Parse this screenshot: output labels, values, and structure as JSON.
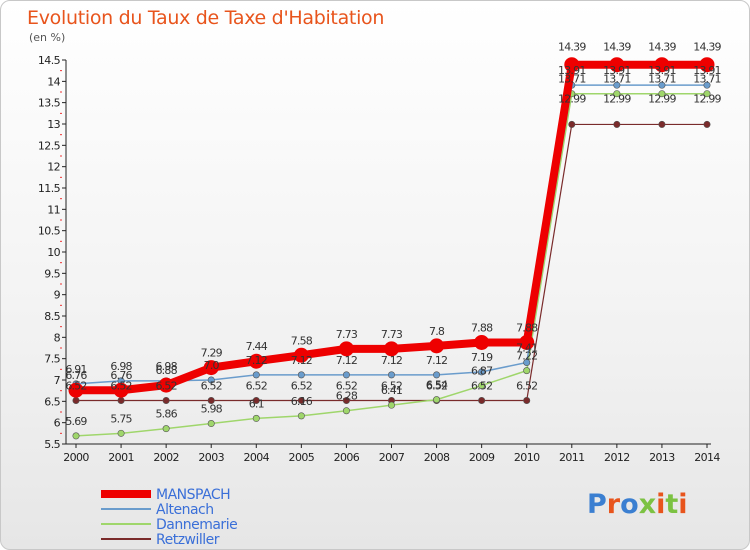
{
  "title": "Evolution du Taux de Taxe d'Habitation",
  "unit": "(en %)",
  "logo": [
    "P",
    "r",
    "o",
    "x",
    "i",
    "t",
    "i"
  ],
  "logo_colors": [
    "#3b7fd1",
    "#e8541c",
    "#3b7fd1",
    "#7cc242",
    "#e8541c",
    "#7cc242",
    "#e8541c"
  ],
  "chart_data": {
    "type": "line",
    "x": [
      2000,
      2001,
      2002,
      2003,
      2004,
      2005,
      2006,
      2007,
      2008,
      2009,
      2010,
      2011,
      2012,
      2013,
      2014
    ],
    "ylim": [
      5.5,
      14.5
    ],
    "yticks": [
      5.5,
      6,
      6.5,
      7,
      7.5,
      8,
      8.5,
      9,
      9.5,
      10,
      10.5,
      11,
      11.5,
      12,
      12.5,
      13,
      13.5,
      14,
      14.5
    ],
    "ytick_labels": [
      "5.5",
      "6",
      "6.5",
      "7",
      "7.5",
      "8",
      "8.5",
      "9",
      "9.5",
      "10",
      "10.5",
      "11",
      "11.5",
      "12",
      "12.5",
      "13",
      "13.5",
      "14",
      "14.5"
    ],
    "grid": false,
    "legend_position": "bottom-left",
    "series": [
      {
        "name": "MANSPACH",
        "color": "#ee0000",
        "values": [
          6.76,
          6.76,
          6.88,
          7.29,
          7.44,
          7.58,
          7.73,
          7.73,
          7.8,
          7.88,
          7.88,
          14.39,
          14.39,
          14.39,
          14.39
        ],
        "labels": [
          "6.76",
          "6.76",
          "6.88",
          "7.29",
          "7.44",
          "7.58",
          "7.73",
          "7.73",
          "7.8",
          "7.88",
          "7.88",
          "14.39",
          "14.39",
          "14.39",
          "14.39"
        ]
      },
      {
        "name": "Altenach",
        "color": "#6a9ccc",
        "values": [
          6.91,
          6.98,
          6.98,
          7.0,
          7.12,
          7.12,
          7.12,
          7.12,
          7.12,
          7.19,
          7.41,
          13.91,
          13.91,
          13.91,
          13.91
        ],
        "labels": [
          "6.91",
          "6.98",
          "6.98",
          "7.0",
          "7.12",
          "7.12",
          "7.12",
          "7.12",
          "7.12",
          "7.19",
          "7.41",
          "13.91",
          "13.91",
          "13.91",
          "13.91"
        ]
      },
      {
        "name": "Dannemarie",
        "color": "#9fd66b",
        "values": [
          5.69,
          5.75,
          5.86,
          5.98,
          6.1,
          6.16,
          6.28,
          6.41,
          6.54,
          6.87,
          7.22,
          13.71,
          13.71,
          13.71,
          13.71
        ],
        "labels": [
          "5.69",
          "5.75",
          "5.86",
          "5.98",
          "6.1",
          "6.16",
          "6.28",
          "6.41",
          "6.54",
          "6.87",
          "7.22",
          "13.71",
          "13.71",
          "13.71",
          "13.71"
        ]
      },
      {
        "name": "Retzwiller",
        "color": "#7a2b2b",
        "values": [
          6.52,
          6.52,
          6.52,
          6.52,
          6.52,
          6.52,
          6.52,
          6.52,
          6.52,
          6.52,
          6.52,
          12.99,
          12.99,
          12.99,
          12.99
        ],
        "labels": [
          "6.52",
          "6.52",
          "6.52",
          "6.52",
          "6.52",
          "6.52",
          "6.52",
          "6.52",
          "6.52",
          "6.52",
          "6.52",
          "12.99",
          "12.99",
          "12.99",
          "12.99"
        ]
      }
    ]
  }
}
